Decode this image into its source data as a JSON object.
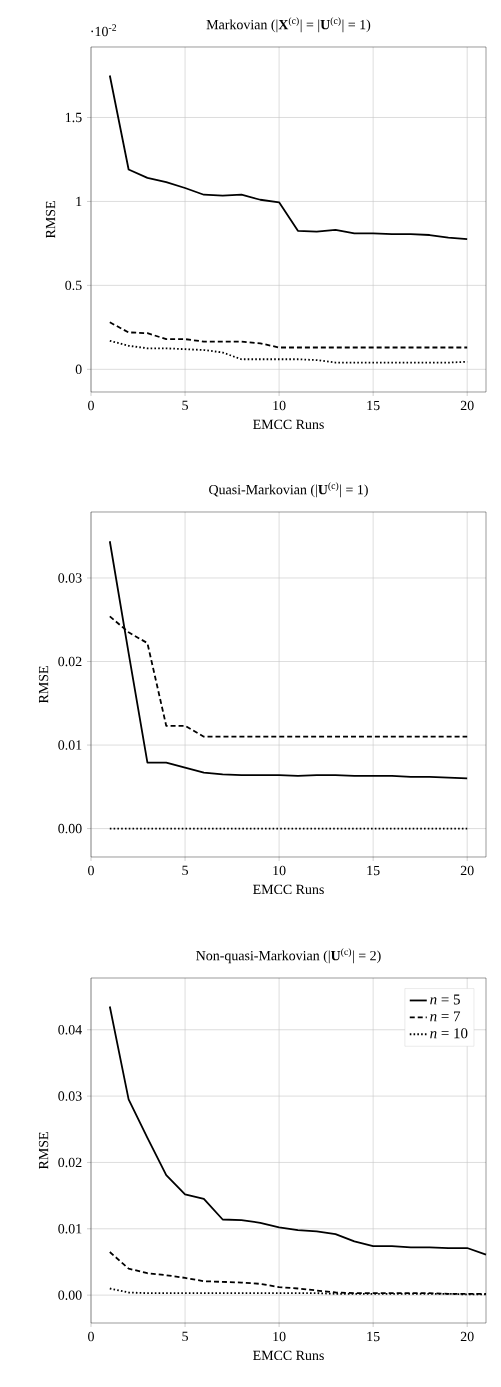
{
  "chart_data": [
    {
      "type": "line",
      "title": "Markovian (|**X**$^{(c)}$| = |**U**$^{(c)}$| = 1)",
      "xlabel": "EMCC Runs",
      "ylabel": "RMSE",
      "annotations": [
        "·10$^{-2}$"
      ],
      "x": [
        1,
        2,
        3,
        4,
        5,
        6,
        7,
        8,
        9,
        10,
        11,
        12,
        13,
        14,
        15,
        16,
        17,
        18,
        19,
        20
      ],
      "series": [
        {
          "color": "#000000",
          "line_style": "solid",
          "values": [
            1.75,
            1.19,
            1.14,
            1.115,
            1.08,
            1.04,
            1.035,
            1.04,
            1.01,
            0.995,
            0.825,
            0.82,
            0.83,
            0.81,
            0.81,
            0.805,
            0.805,
            0.8,
            0.785,
            0.775
          ]
        },
        {
          "color": "#000000",
          "line_style": "dashed",
          "values": [
            0.28,
            0.22,
            0.215,
            0.18,
            0.18,
            0.165,
            0.165,
            0.165,
            0.155,
            0.13,
            0.13,
            0.13,
            0.13,
            0.13,
            0.13,
            0.13,
            0.13,
            0.13,
            0.13,
            0.13
          ]
        },
        {
          "color": "#000000",
          "line_style": "dotted",
          "values": [
            0.17,
            0.14,
            0.125,
            0.125,
            0.12,
            0.115,
            0.1,
            0.06,
            0.06,
            0.06,
            0.06,
            0.055,
            0.04,
            0.04,
            0.04,
            0.04,
            0.04,
            0.04,
            0.04,
            0.045
          ]
        }
      ],
      "xlim": [
        0,
        21
      ],
      "ylim": [
        -0.135,
        1.92
      ],
      "xticks": [
        0,
        5,
        10,
        15,
        20
      ],
      "yticks": [
        0,
        0.5,
        1,
        1.5
      ],
      "grid": true,
      "legend": false
    },
    {
      "type": "line",
      "title": "Quasi-Markovian (|**U**$^{(c)}$| = 1)",
      "xlabel": "EMCC Runs",
      "ylabel": "RMSE",
      "x": [
        1,
        2,
        3,
        4,
        5,
        6,
        7,
        8,
        9,
        10,
        11,
        12,
        13,
        14,
        15,
        16,
        17,
        18,
        19,
        20
      ],
      "series": [
        {
          "color": "#000000",
          "line_style": "solid",
          "values": [
            0.0344,
            0.021,
            0.0079,
            0.0079,
            0.0073,
            0.0067,
            0.0065,
            0.0064,
            0.0064,
            0.0064,
            0.0063,
            0.0064,
            0.0064,
            0.0063,
            0.0063,
            0.0063,
            0.0062,
            0.0062,
            0.0061,
            0.006
          ]
        },
        {
          "color": "#000000",
          "line_style": "dashed",
          "values": [
            0.0254,
            0.0235,
            0.0222,
            0.0123,
            0.0123,
            0.011,
            0.011,
            0.011,
            0.011,
            0.011,
            0.011,
            0.011,
            0.011,
            0.011,
            0.011,
            0.011,
            0.011,
            0.011,
            0.011,
            0.011
          ]
        },
        {
          "color": "#000000",
          "line_style": "dotted",
          "values": [
            0,
            0,
            0,
            0,
            0,
            0,
            0,
            0,
            0,
            0,
            0,
            0,
            0,
            0,
            0,
            0,
            0,
            0,
            0,
            0
          ]
        }
      ],
      "xlim": [
        0,
        21
      ],
      "ylim": [
        -0.0034,
        0.0379
      ],
      "xticks": [
        0,
        5,
        10,
        15,
        20
      ],
      "yticks": [
        {
          "value": 0,
          "label": "0.00"
        },
        {
          "value": 0.01,
          "label": "0.01"
        },
        {
          "value": 0.02,
          "label": "0.02"
        },
        {
          "value": 0.03,
          "label": "0.03"
        }
      ],
      "grid": true,
      "legend": false
    },
    {
      "type": "line",
      "title": "Non-quasi-Markovian (|**U**$^{(c)}$| = 2)",
      "xlabel": "EMCC Runs",
      "ylabel": "RMSE",
      "x": [
        1,
        2,
        3,
        4,
        5,
        6,
        7,
        8,
        9,
        10,
        11,
        12,
        13,
        14,
        15,
        16,
        17,
        18,
        19,
        20,
        21
      ],
      "series": [
        {
          "name": "*n* = 5",
          "color": "#000000",
          "line_style": "solid",
          "values": [
            0.0435,
            0.0295,
            0.0237,
            0.0181,
            0.0152,
            0.0145,
            0.0114,
            0.0113,
            0.0109,
            0.0102,
            0.0098,
            0.0096,
            0.0092,
            0.0081,
            0.0074,
            0.0074,
            0.0072,
            0.0072,
            0.0071,
            0.0071,
            0.0061
          ]
        },
        {
          "name": "*n* = 7",
          "color": "#000000",
          "line_style": "dashed",
          "values": [
            0.0065,
            0.004,
            0.0033,
            0.003,
            0.0026,
            0.0021,
            0.002,
            0.0019,
            0.0017,
            0.0012,
            0.001,
            0.0007,
            0.0004,
            0.0003,
            0.0003,
            0.0003,
            0.0003,
            0.0003,
            0.0002,
            0.0002,
            0.0002
          ]
        },
        {
          "name": "*n* = 10",
          "color": "#000000",
          "line_style": "dotted",
          "values": [
            0.001,
            0.0004,
            0.0003,
            0.0003,
            0.0003,
            0.0003,
            0.0003,
            0.0003,
            0.0003,
            0.0003,
            0.0003,
            0.0003,
            0.0002,
            0.0002,
            0.0002,
            0.0002,
            0.0002,
            0.0002,
            0.0002,
            0.0001,
            0.0001
          ]
        }
      ],
      "xlim": [
        0,
        21
      ],
      "ylim": [
        -0.0042,
        0.0478
      ],
      "xticks": [
        0,
        5,
        10,
        15,
        20
      ],
      "yticks": [
        {
          "value": 0,
          "label": "0.00"
        },
        {
          "value": 0.01,
          "label": "0.01"
        },
        {
          "value": 0.02,
          "label": "0.02"
        },
        {
          "value": 0.03,
          "label": "0.03"
        },
        {
          "value": 0.04,
          "label": "0.04"
        }
      ],
      "grid": true,
      "legend": "top right"
    }
  ]
}
